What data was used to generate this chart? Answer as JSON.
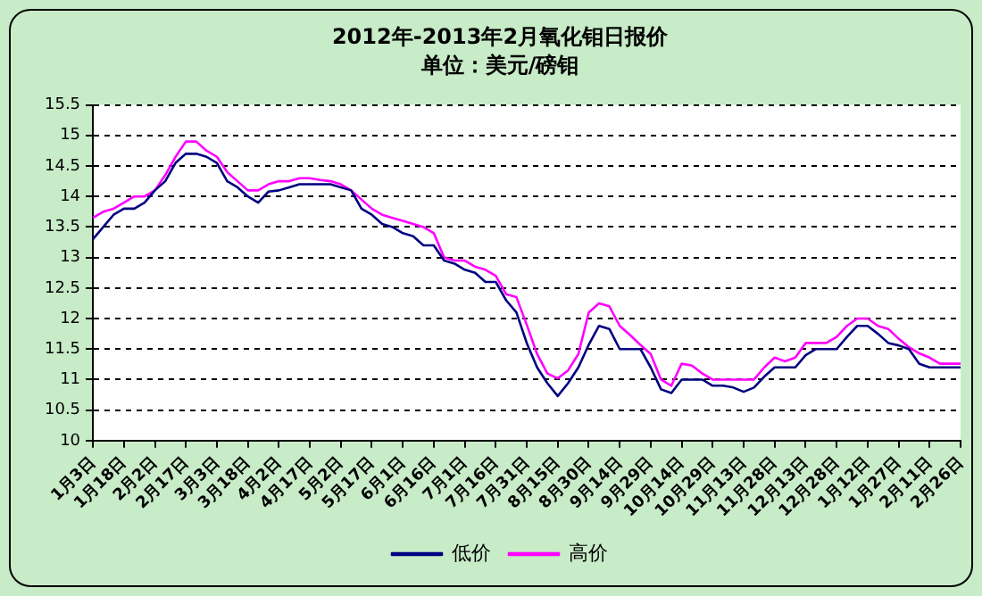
{
  "chart_data": {
    "type": "line",
    "title": "2012年-2013年2月氧化钼日报价",
    "subtitle": "单位：美元/磅钼",
    "categories": [
      "1月3日",
      null,
      null,
      "1月18日",
      null,
      null,
      "2月2日",
      null,
      null,
      "2月17日",
      null,
      null,
      "3月3日",
      null,
      null,
      "3月18日",
      null,
      null,
      "4月2日",
      null,
      null,
      "4月17日",
      null,
      null,
      "5月2日",
      null,
      null,
      "5月17日",
      null,
      null,
      "6月1日",
      null,
      null,
      "6月16日",
      null,
      null,
      "7月1日",
      null,
      null,
      "7月16日",
      null,
      null,
      "7月31日",
      null,
      null,
      "8月15日",
      null,
      null,
      "8月30日",
      null,
      null,
      "9月14日",
      null,
      null,
      "9月29日",
      null,
      null,
      "10月14日",
      null,
      null,
      "10月29日",
      null,
      null,
      "11月13日",
      null,
      null,
      "11月28日",
      null,
      null,
      "12月13日",
      null,
      null,
      "12月28日",
      null,
      null,
      "1月12日",
      null,
      null,
      "1月27日",
      null,
      null,
      "2月11日",
      null,
      null,
      "2月26日"
    ],
    "series": [
      {
        "name": "低价",
        "color": "#000080",
        "values": [
          13.3,
          13.5,
          13.7,
          13.8,
          13.8,
          13.9,
          14.1,
          14.25,
          14.55,
          14.7,
          14.7,
          14.65,
          14.55,
          14.25,
          14.15,
          14.0,
          13.9,
          14.08,
          14.1,
          14.15,
          14.2,
          14.2,
          14.2,
          14.2,
          14.15,
          14.1,
          13.8,
          13.7,
          13.55,
          13.5,
          13.4,
          13.35,
          13.2,
          13.2,
          12.95,
          12.9,
          12.8,
          12.75,
          12.6,
          12.6,
          12.3,
          12.1,
          11.6,
          11.2,
          10.94,
          10.73,
          10.94,
          11.2,
          11.57,
          11.88,
          11.83,
          11.5,
          11.5,
          11.5,
          11.2,
          10.84,
          10.78,
          11.0,
          11.0,
          11.0,
          10.9,
          10.9,
          10.87,
          10.8,
          10.87,
          11.05,
          11.2,
          11.2,
          11.2,
          11.4,
          11.5,
          11.5,
          11.5,
          11.7,
          11.88,
          11.88,
          11.75,
          11.6,
          11.56,
          11.5,
          11.26,
          11.2,
          11.2,
          11.2,
          11.2
        ]
      },
      {
        "name": "高价",
        "color": "#ff00ff",
        "values": [
          13.65,
          13.75,
          13.8,
          13.9,
          14.0,
          14.0,
          14.1,
          14.35,
          14.65,
          14.9,
          14.9,
          14.75,
          14.65,
          14.4,
          14.25,
          14.1,
          14.1,
          14.2,
          14.25,
          14.25,
          14.3,
          14.3,
          14.27,
          14.25,
          14.2,
          14.1,
          13.95,
          13.8,
          13.7,
          13.65,
          13.6,
          13.55,
          13.5,
          13.4,
          13.0,
          12.95,
          12.95,
          12.85,
          12.8,
          12.7,
          12.4,
          12.35,
          11.9,
          11.42,
          11.1,
          11.02,
          11.15,
          11.42,
          12.1,
          12.25,
          12.2,
          11.88,
          11.73,
          11.57,
          11.42,
          11.0,
          10.9,
          11.26,
          11.23,
          11.1,
          11.0,
          11.0,
          11.0,
          11.0,
          11.0,
          11.2,
          11.36,
          11.3,
          11.36,
          11.6,
          11.6,
          11.6,
          11.7,
          11.88,
          12.0,
          12.0,
          11.88,
          11.83,
          11.67,
          11.53,
          11.43,
          11.36,
          11.26,
          11.26,
          11.26
        ]
      }
    ],
    "ylim": [
      10,
      15.5
    ],
    "yticks": [
      10,
      10.5,
      11,
      11.5,
      12,
      12.5,
      13,
      13.5,
      14,
      14.5,
      15,
      15.5
    ],
    "grid": "y",
    "legend": "bottom",
    "marker": "none",
    "line_style": "solid"
  }
}
